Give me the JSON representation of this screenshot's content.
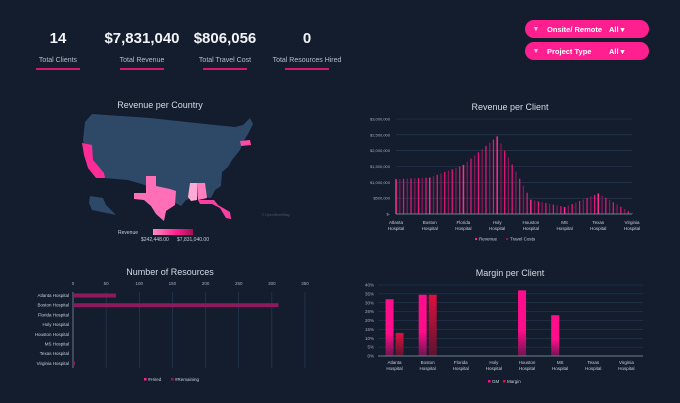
{
  "kpis": [
    {
      "value": "14",
      "label": "Total Clients"
    },
    {
      "value": "$7,831,040",
      "label": "Total Revenue"
    },
    {
      "value": "$806,056",
      "label": "Total Travel Cost"
    },
    {
      "value": "0",
      "label": "Total Resources Hired"
    }
  ],
  "filters": [
    {
      "name": "Onsite/ Remote",
      "value": "All ▾",
      "icon": "filter-icon"
    },
    {
      "name": "Project Type",
      "value": "All ▾",
      "icon": "filter-icon"
    }
  ],
  "colors": {
    "background": "#131d2e",
    "accent": "#ff1f8e",
    "map_base": "#2e4868",
    "margin": "#d81445"
  },
  "map": {
    "title": "Revenue per Country",
    "legend_label": "Revenue",
    "legend_min": "$242,448.00",
    "legend_max": "$7,831,040.00",
    "highlighted_states": [
      "California",
      "Texas",
      "Mississippi",
      "Alabama",
      "Florida",
      "Massachusetts"
    ]
  },
  "chart_data": [
    {
      "type": "bar",
      "title": "Revenue per Client",
      "categories": [
        "Atlanta Hospital",
        "Boston Hospital",
        "Florida Hospital",
        "Holy Hospital",
        "Houston Hospital",
        "MS Hospital",
        "Texas Hospital",
        "Virginia Hospital"
      ],
      "yticks": [
        "$-",
        "$500,000",
        "$1,000,000",
        "$1,500,000",
        "$2,000,000",
        "$2,500,000",
        "$3,000,000"
      ],
      "ylim": [
        0,
        3000000
      ],
      "series": [
        {
          "name": "Revenue",
          "values": [
            1100000,
            1150000,
            1550000,
            2450000,
            450000,
            220000,
            650000,
            20000
          ]
        },
        {
          "name": "Travel Costs",
          "values": [
            250000,
            150000,
            100000,
            60000,
            50000,
            30000,
            80000,
            10000
          ]
        }
      ],
      "grid": true,
      "legend": "bottom"
    },
    {
      "type": "bar",
      "orientation": "horizontal",
      "title": "Number of Resources",
      "categories": [
        "Atlanta Hospital",
        "Boston Hospital",
        "Florida Hospital",
        "Holy Hospital",
        "Houston Hospital",
        "MS Hospital",
        "Texas Hospital",
        "Virginia Hospital"
      ],
      "xticks": [
        "0",
        "50",
        "100",
        "150",
        "200",
        "250",
        "300",
        "350"
      ],
      "xlim": [
        0,
        350
      ],
      "series": [
        {
          "name": "#Hired",
          "values": [
            0,
            0,
            0,
            0,
            0,
            0,
            0,
            0
          ]
        },
        {
          "name": "#Remaining",
          "values": [
            65,
            310,
            0,
            0,
            0,
            0,
            0,
            3
          ]
        }
      ],
      "grid": true,
      "legend": "bottom"
    },
    {
      "type": "bar",
      "title": "Margin per Client",
      "categories": [
        "Atlanta Hospital",
        "Boston Hospital",
        "Florida Hospital",
        "Holy Hospital",
        "Houston Hospital",
        "MS Hospital",
        "Texas Hospital",
        "Virginia Hospital"
      ],
      "yticks": [
        "0%",
        "5%",
        "10%",
        "15%",
        "20%",
        "25%",
        "30%",
        "35%",
        "40%"
      ],
      "ylim": [
        0,
        40
      ],
      "series": [
        {
          "name": "GM",
          "values": [
            32,
            34.5,
            0,
            0,
            37,
            23,
            0,
            0
          ]
        },
        {
          "name": "Margin",
          "values": [
            13,
            34.5,
            0,
            0,
            0,
            0,
            0,
            0
          ]
        }
      ],
      "grid": true,
      "legend": "bottom"
    }
  ]
}
